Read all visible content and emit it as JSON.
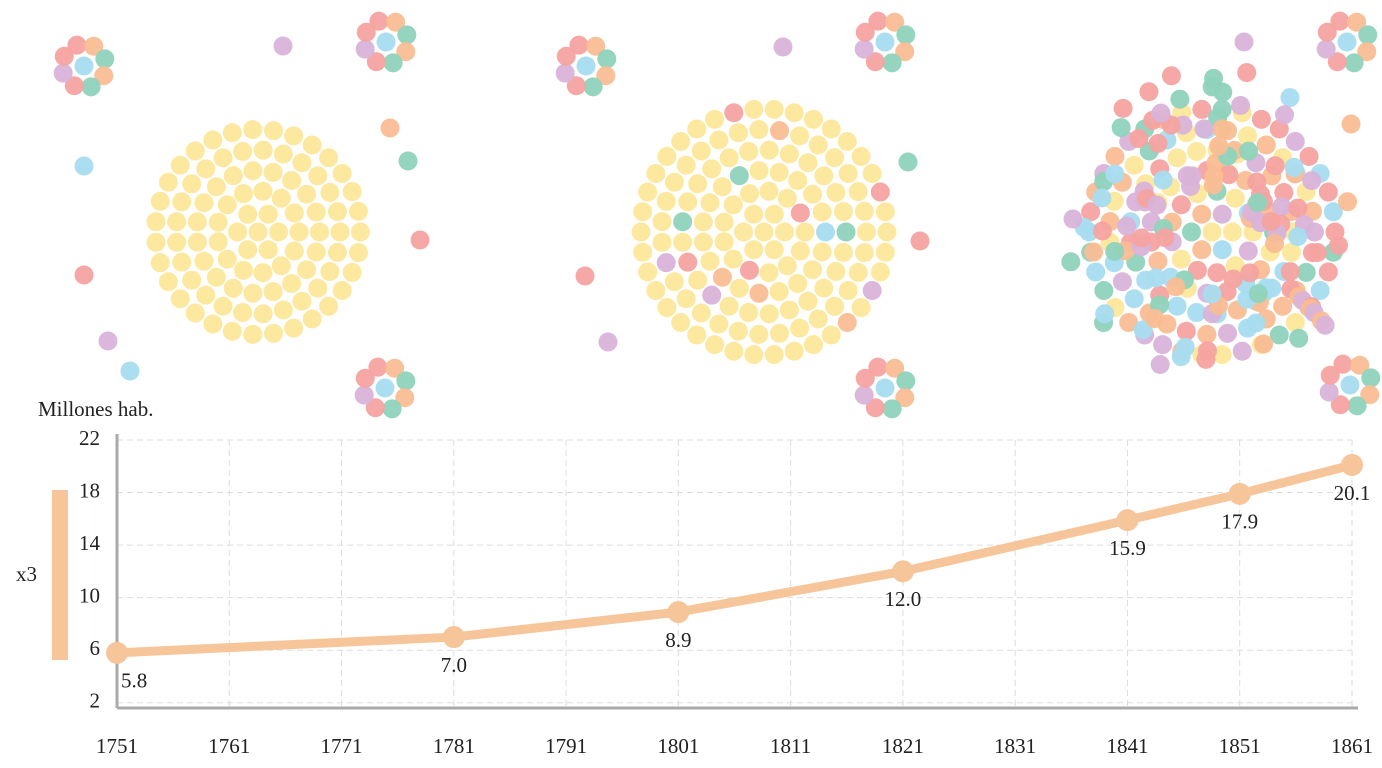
{
  "chart_data": {
    "type": "line",
    "y_label": "Millones hab.",
    "annotation": "x3",
    "x": [
      1751,
      1781,
      1801,
      1821,
      1841,
      1851,
      1861
    ],
    "series": [
      {
        "color": "#f6c59a",
        "values": [
          5.8,
          7.0,
          8.9,
          12.0,
          15.9,
          17.9,
          20.1
        ],
        "value_labels": [
          "5.8",
          "7.0",
          "8.9",
          "12.0",
          "15.9",
          "17.9",
          "20.1"
        ]
      }
    ],
    "xlim": [
      1751,
      1861
    ],
    "xticks": [
      1751,
      1761,
      1771,
      1781,
      1791,
      1801,
      1811,
      1821,
      1831,
      1841,
      1851,
      1861
    ],
    "ylim": [
      1.6,
      22
    ],
    "yticks": [
      2,
      6,
      10,
      14,
      18,
      22
    ],
    "grid": true
  }
}
